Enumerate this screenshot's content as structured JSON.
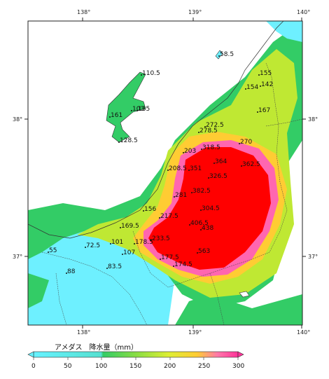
{
  "legend": {
    "title": "アメダス　降水量（mm）",
    "ticks": [
      "0",
      "50",
      "100",
      "150",
      "200",
      "250",
      "300"
    ],
    "colors": [
      "#6ef0ff",
      "#33cc66",
      "#bfe833",
      "#ffcc33",
      "#ff66b0",
      "#ff0000"
    ]
  },
  "axes": {
    "top_lon": [
      "138°",
      "139°",
      "140°"
    ],
    "bottom_lon": [
      "138°",
      "139°",
      "140°"
    ],
    "left_lat": [
      "38°",
      "37°"
    ],
    "right_lat": [
      "38°",
      "37°"
    ]
  },
  "stations": [
    {
      "label": "58.5"
    },
    {
      "label": "110.5"
    },
    {
      "label": "155"
    },
    {
      "label": "154"
    },
    {
      "label": "142"
    },
    {
      "label": "167"
    },
    {
      "label": "161"
    },
    {
      "label": "103"
    },
    {
      "label": "135"
    },
    {
      "label": "128.5"
    },
    {
      "label": "272.5"
    },
    {
      "label": "278.5"
    },
    {
      "label": "270"
    },
    {
      "label": "203"
    },
    {
      "label": "318.5"
    },
    {
      "label": "364"
    },
    {
      "label": "362.5"
    },
    {
      "label": "208.5"
    },
    {
      "label": "351"
    },
    {
      "label": "326.5"
    },
    {
      "label": "382.5"
    },
    {
      "label": "281"
    },
    {
      "label": "304.5"
    },
    {
      "label": "156"
    },
    {
      "label": "217.5"
    },
    {
      "label": "169.5"
    },
    {
      "label": "406.5"
    },
    {
      "label": "438"
    },
    {
      "label": "233.5"
    },
    {
      "label": "72.5"
    },
    {
      "label": "101"
    },
    {
      "label": "178.5"
    },
    {
      "label": "55"
    },
    {
      "label": "107"
    },
    {
      "label": "563"
    },
    {
      "label": "177.5"
    },
    {
      "label": "83.5"
    },
    {
      "label": "174.5"
    },
    {
      "label": "88"
    }
  ]
}
